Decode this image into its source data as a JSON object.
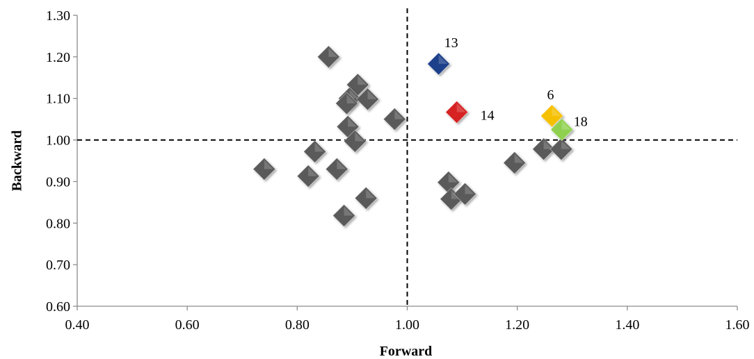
{
  "chart_data": {
    "type": "scatter",
    "title": "",
    "xlabel": "Forward",
    "ylabel": "Backward",
    "xlim": [
      0.4,
      1.6
    ],
    "ylim": [
      0.6,
      1.3
    ],
    "x_ticks": [
      "0.40",
      "0.60",
      "0.80",
      "1.00",
      "1.20",
      "1.40",
      "1.60"
    ],
    "y_ticks": [
      "0.60",
      "0.70",
      "0.80",
      "0.90",
      "1.00",
      "1.10",
      "1.20",
      "1.30"
    ],
    "x_tick_values": [
      0.4,
      0.6,
      0.8,
      1.0,
      1.2,
      1.4,
      1.6
    ],
    "y_tick_values": [
      0.6,
      0.7,
      0.8,
      0.9,
      1.0,
      1.1,
      1.2,
      1.3
    ],
    "grid": false,
    "legend": "none",
    "reference_lines": {
      "x": 1.0,
      "y": 1.0,
      "style": "dashed"
    },
    "marker": "diamond",
    "colors": {
      "default": "#5a5a5a",
      "blue": "#1f3f8a",
      "red": "#d62020",
      "yellow": "#f5c000",
      "green": "#8fd14f"
    },
    "points": [
      {
        "x": 0.857,
        "y": 1.2,
        "color": "default",
        "label": ""
      },
      {
        "x": 0.91,
        "y": 1.133,
        "color": "default",
        "label": ""
      },
      {
        "x": 0.895,
        "y": 1.1,
        "color": "default",
        "label": ""
      },
      {
        "x": 0.928,
        "y": 1.098,
        "color": "default",
        "label": ""
      },
      {
        "x": 0.89,
        "y": 1.088,
        "color": "default",
        "label": ""
      },
      {
        "x": 0.977,
        "y": 1.05,
        "color": "default",
        "label": ""
      },
      {
        "x": 0.892,
        "y": 1.032,
        "color": "default",
        "label": ""
      },
      {
        "x": 0.905,
        "y": 0.997,
        "color": "default",
        "label": ""
      },
      {
        "x": 0.832,
        "y": 0.972,
        "color": "default",
        "label": ""
      },
      {
        "x": 0.74,
        "y": 0.93,
        "color": "default",
        "label": ""
      },
      {
        "x": 0.872,
        "y": 0.93,
        "color": "default",
        "label": ""
      },
      {
        "x": 0.82,
        "y": 0.913,
        "color": "default",
        "label": ""
      },
      {
        "x": 0.925,
        "y": 0.86,
        "color": "default",
        "label": ""
      },
      {
        "x": 0.885,
        "y": 0.818,
        "color": "default",
        "label": ""
      },
      {
        "x": 1.075,
        "y": 0.898,
        "color": "default",
        "label": ""
      },
      {
        "x": 1.08,
        "y": 0.858,
        "color": "default",
        "label": ""
      },
      {
        "x": 1.105,
        "y": 0.87,
        "color": "default",
        "label": ""
      },
      {
        "x": 1.195,
        "y": 0.945,
        "color": "default",
        "label": ""
      },
      {
        "x": 1.248,
        "y": 0.978,
        "color": "default",
        "label": ""
      },
      {
        "x": 1.28,
        "y": 0.978,
        "color": "default",
        "label": ""
      },
      {
        "x": 1.057,
        "y": 1.183,
        "color": "blue",
        "label": "13"
      },
      {
        "x": 1.09,
        "y": 1.067,
        "color": "red",
        "label": "14"
      },
      {
        "x": 1.263,
        "y": 1.058,
        "color": "yellow",
        "label": "6"
      },
      {
        "x": 1.281,
        "y": 1.025,
        "color": "green",
        "label": "18"
      }
    ]
  }
}
